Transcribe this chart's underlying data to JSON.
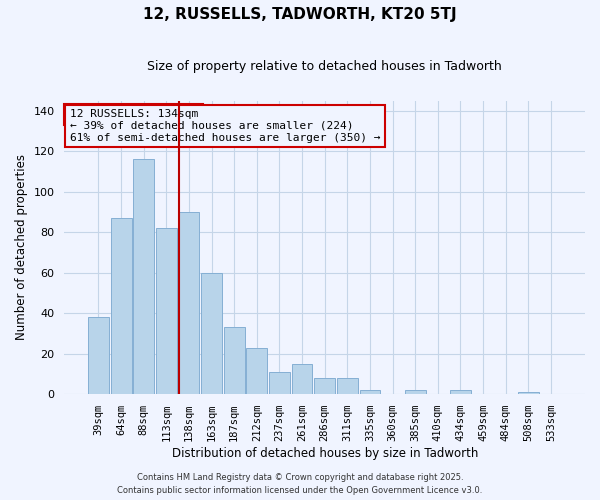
{
  "title": "12, RUSSELLS, TADWORTH, KT20 5TJ",
  "subtitle": "Size of property relative to detached houses in Tadworth",
  "xlabel": "Distribution of detached houses by size in Tadworth",
  "ylabel": "Number of detached properties",
  "bar_labels": [
    "39sqm",
    "64sqm",
    "88sqm",
    "113sqm",
    "138sqm",
    "163sqm",
    "187sqm",
    "212sqm",
    "237sqm",
    "261sqm",
    "286sqm",
    "311sqm",
    "335sqm",
    "360sqm",
    "385sqm",
    "410sqm",
    "434sqm",
    "459sqm",
    "484sqm",
    "508sqm",
    "533sqm"
  ],
  "bar_values": [
    38,
    87,
    116,
    82,
    90,
    60,
    33,
    23,
    11,
    15,
    8,
    8,
    2,
    0,
    2,
    0,
    2,
    0,
    0,
    1,
    0
  ],
  "bar_color": "#b8d4ea",
  "bar_edge_color": "#85afd4",
  "vline_color": "#bb0000",
  "vline_pos": 3.55,
  "ylim": [
    0,
    145
  ],
  "yticks": [
    0,
    20,
    40,
    60,
    80,
    100,
    120,
    140
  ],
  "annotation_title": "12 RUSSELLS: 134sqm",
  "annotation_line1": "← 39% of detached houses are smaller (224)",
  "annotation_line2": "61% of semi-detached houses are larger (350) →",
  "annotation_box_color": "#cc0000",
  "footer_line1": "Contains HM Land Registry data © Crown copyright and database right 2025.",
  "footer_line2": "Contains public sector information licensed under the Open Government Licence v3.0.",
  "bg_color": "#f0f4ff",
  "grid_color": "#c5d5e8"
}
